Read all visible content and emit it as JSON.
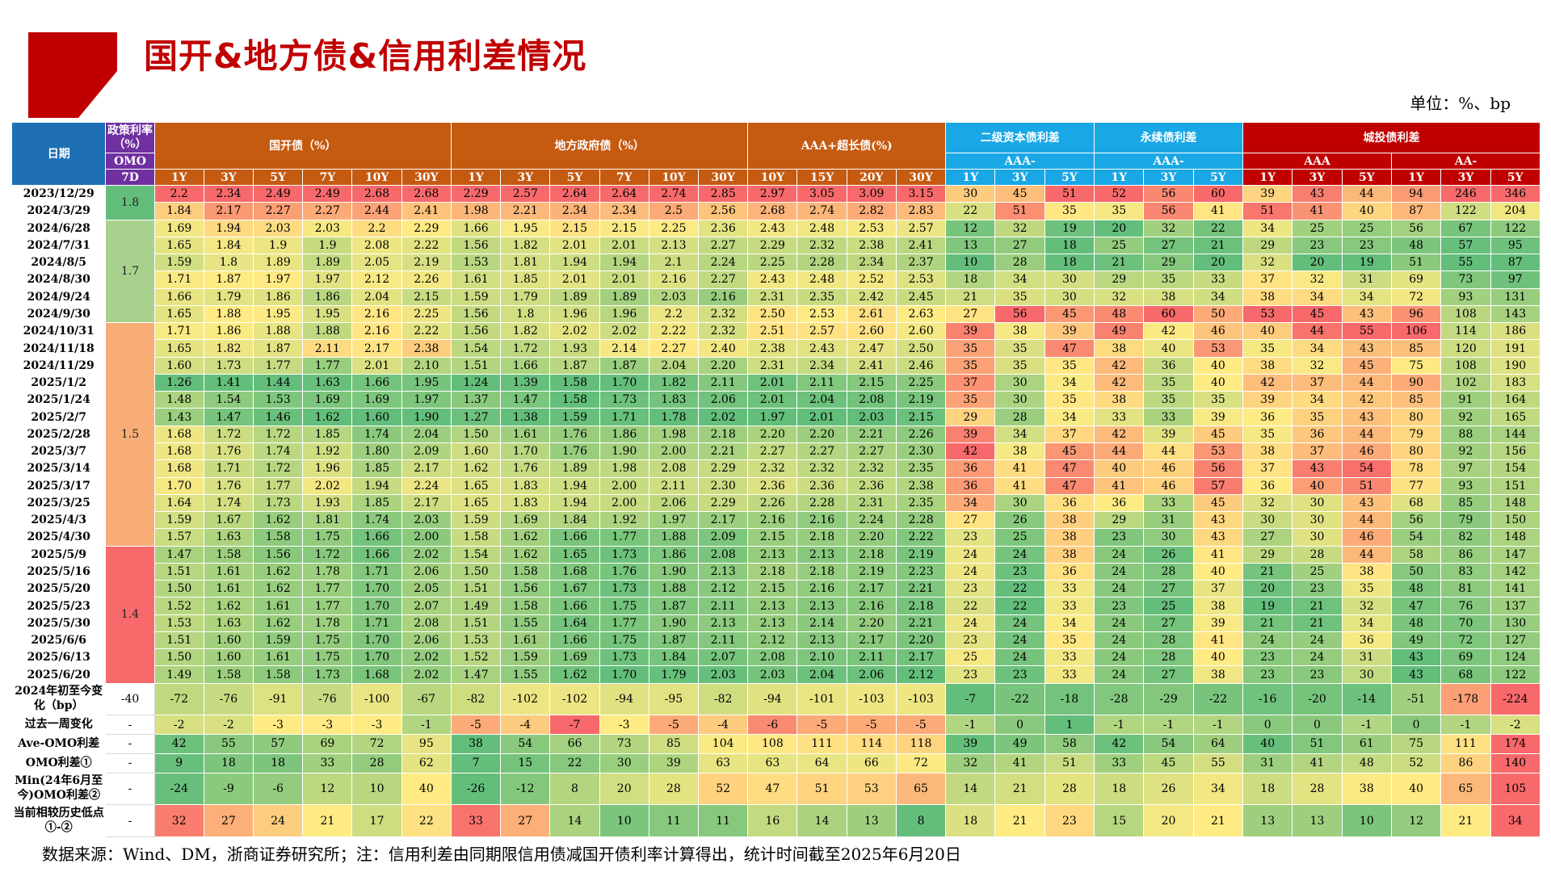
{
  "page": {
    "title": "国开&地方债&信用利差情况",
    "unit": "单位：%、bp",
    "source": "数据来源：Wind、DM，浙商证券研究所；注：信用利差由同期限信用债减国开债利率计算得出，统计时间截至2025年6月20日"
  },
  "header": {
    "date": "日期",
    "policy_title": "政策利率（%）",
    "policy_sub": "OMO",
    "policy_tenor": "7D",
    "groups": [
      "国开债（%）",
      "地方政府债（%）",
      "AAA+超长债(%)",
      "二级资本债利差",
      "永续债利差",
      "城投债利差"
    ],
    "ratings": [
      "AAA-",
      "AAA-",
      "AAA",
      "AA-"
    ],
    "tenors": [
      "1Y",
      "3Y",
      "5Y",
      "7Y",
      "10Y",
      "30Y",
      "1Y",
      "3Y",
      "5Y",
      "7Y",
      "10Y",
      "30Y",
      "10Y",
      "15Y",
      "20Y",
      "30Y",
      "1Y",
      "3Y",
      "5Y",
      "1Y",
      "3Y",
      "5Y",
      "1Y",
      "3Y",
      "5Y",
      "1Y",
      "3Y",
      "5Y"
    ]
  },
  "policy_rates": [
    {
      "value": "1.8",
      "rows": 2
    },
    {
      "value": "1.7",
      "rows": 6
    },
    {
      "value": "1.5",
      "rows": 13
    },
    {
      "value": "1.4",
      "rows": 8
    }
  ],
  "rows": [
    {
      "date": "2023/12/29",
      "v": [
        "2.2",
        "2.34",
        "2.49",
        "2.49",
        "2.68",
        "2.68",
        "2.29",
        "2.57",
        "2.64",
        "2.64",
        "2.74",
        "2.85",
        "2.97",
        "3.05",
        "3.09",
        "3.15",
        "30",
        "45",
        "51",
        "52",
        "56",
        "60",
        "39",
        "43",
        "44",
        "94",
        "246",
        "346"
      ]
    },
    {
      "date": "2024/3/29",
      "v": [
        "1.84",
        "2.17",
        "2.27",
        "2.27",
        "2.44",
        "2.41",
        "1.98",
        "2.21",
        "2.34",
        "2.34",
        "2.5",
        "2.56",
        "2.68",
        "2.74",
        "2.82",
        "2.83",
        "22",
        "51",
        "35",
        "35",
        "56",
        "41",
        "51",
        "41",
        "40",
        "87",
        "122",
        "204"
      ]
    },
    {
      "date": "2024/6/28",
      "v": [
        "1.69",
        "1.94",
        "2.03",
        "2.03",
        "2.2",
        "2.29",
        "1.66",
        "1.95",
        "2.15",
        "2.15",
        "2.25",
        "2.36",
        "2.43",
        "2.48",
        "2.53",
        "2.57",
        "12",
        "32",
        "19",
        "20",
        "32",
        "22",
        "34",
        "25",
        "25",
        "56",
        "67",
        "122"
      ]
    },
    {
      "date": "2024/7/31",
      "v": [
        "1.65",
        "1.84",
        "1.9",
        "1.9",
        "2.08",
        "2.22",
        "1.56",
        "1.82",
        "2.01",
        "2.01",
        "2.13",
        "2.27",
        "2.29",
        "2.32",
        "2.38",
        "2.41",
        "13",
        "27",
        "18",
        "25",
        "27",
        "21",
        "29",
        "23",
        "23",
        "48",
        "57",
        "95"
      ]
    },
    {
      "date": "2024/8/5",
      "v": [
        "1.59",
        "1.8",
        "1.89",
        "1.89",
        "2.05",
        "2.19",
        "1.53",
        "1.81",
        "1.94",
        "1.94",
        "2.1",
        "2.24",
        "2.25",
        "2.28",
        "2.34",
        "2.37",
        "10",
        "28",
        "18",
        "21",
        "29",
        "20",
        "32",
        "20",
        "19",
        "51",
        "55",
        "87"
      ]
    },
    {
      "date": "2024/8/30",
      "v": [
        "1.71",
        "1.87",
        "1.97",
        "1.97",
        "2.12",
        "2.26",
        "1.61",
        "1.85",
        "2.01",
        "2.01",
        "2.16",
        "2.27",
        "2.43",
        "2.48",
        "2.52",
        "2.53",
        "18",
        "34",
        "30",
        "29",
        "35",
        "33",
        "37",
        "32",
        "31",
        "69",
        "73",
        "97"
      ]
    },
    {
      "date": "2024/9/24",
      "v": [
        "1.66",
        "1.79",
        "1.86",
        "1.86",
        "2.04",
        "2.15",
        "1.59",
        "1.79",
        "1.89",
        "1.89",
        "2.03",
        "2.16",
        "2.31",
        "2.35",
        "2.42",
        "2.45",
        "21",
        "35",
        "30",
        "32",
        "38",
        "34",
        "38",
        "34",
        "34",
        "72",
        "93",
        "131"
      ]
    },
    {
      "date": "2024/9/30",
      "v": [
        "1.65",
        "1.88",
        "1.95",
        "1.95",
        "2.16",
        "2.25",
        "1.56",
        "1.8",
        "1.96",
        "1.96",
        "2.2",
        "2.32",
        "2.50",
        "2.53",
        "2.61",
        "2.63",
        "27",
        "56",
        "45",
        "48",
        "60",
        "50",
        "53",
        "45",
        "43",
        "96",
        "108",
        "143"
      ]
    },
    {
      "date": "2024/10/31",
      "v": [
        "1.71",
        "1.86",
        "1.88",
        "1.88",
        "2.16",
        "2.22",
        "1.56",
        "1.82",
        "2.02",
        "2.02",
        "2.22",
        "2.32",
        "2.51",
        "2.57",
        "2.60",
        "2.60",
        "39",
        "38",
        "39",
        "49",
        "42",
        "46",
        "40",
        "44",
        "55",
        "106",
        "114",
        "186"
      ]
    },
    {
      "date": "2024/11/18",
      "v": [
        "1.65",
        "1.82",
        "1.87",
        "2.11",
        "2.17",
        "2.38",
        "1.54",
        "1.72",
        "1.93",
        "2.14",
        "2.27",
        "2.40",
        "2.38",
        "2.43",
        "2.47",
        "2.50",
        "35",
        "35",
        "47",
        "38",
        "40",
        "53",
        "35",
        "34",
        "43",
        "85",
        "120",
        "191"
      ]
    },
    {
      "date": "2024/11/29",
      "v": [
        "1.60",
        "1.73",
        "1.77",
        "1.77",
        "2.01",
        "2.10",
        "1.51",
        "1.66",
        "1.87",
        "1.87",
        "2.04",
        "2.20",
        "2.31",
        "2.34",
        "2.41",
        "2.46",
        "35",
        "35",
        "35",
        "42",
        "36",
        "40",
        "38",
        "32",
        "45",
        "75",
        "108",
        "190"
      ]
    },
    {
      "date": "2025/1/2",
      "v": [
        "1.26",
        "1.41",
        "1.44",
        "1.63",
        "1.66",
        "1.95",
        "1.24",
        "1.39",
        "1.58",
        "1.70",
        "1.82",
        "2.11",
        "2.01",
        "2.11",
        "2.15",
        "2.25",
        "37",
        "30",
        "34",
        "42",
        "35",
        "40",
        "42",
        "37",
        "44",
        "90",
        "102",
        "183"
      ]
    },
    {
      "date": "2025/1/24",
      "v": [
        "1.48",
        "1.54",
        "1.53",
        "1.69",
        "1.69",
        "1.97",
        "1.37",
        "1.47",
        "1.58",
        "1.73",
        "1.83",
        "2.06",
        "2.01",
        "2.04",
        "2.08",
        "2.19",
        "35",
        "30",
        "35",
        "38",
        "35",
        "35",
        "39",
        "34",
        "42",
        "85",
        "91",
        "164"
      ]
    },
    {
      "date": "2025/2/7",
      "v": [
        "1.43",
        "1.47",
        "1.46",
        "1.62",
        "1.60",
        "1.90",
        "1.27",
        "1.38",
        "1.59",
        "1.71",
        "1.78",
        "2.02",
        "1.97",
        "2.01",
        "2.03",
        "2.15",
        "29",
        "28",
        "34",
        "33",
        "33",
        "39",
        "36",
        "35",
        "43",
        "80",
        "92",
        "165"
      ]
    },
    {
      "date": "2025/2/28",
      "v": [
        "1.68",
        "1.72",
        "1.72",
        "1.85",
        "1.74",
        "2.04",
        "1.50",
        "1.61",
        "1.76",
        "1.86",
        "1.98",
        "2.18",
        "2.20",
        "2.20",
        "2.21",
        "2.26",
        "39",
        "34",
        "37",
        "42",
        "39",
        "45",
        "35",
        "36",
        "44",
        "79",
        "88",
        "144"
      ]
    },
    {
      "date": "2025/3/7",
      "v": [
        "1.68",
        "1.76",
        "1.74",
        "1.92",
        "1.80",
        "2.09",
        "1.60",
        "1.70",
        "1.76",
        "1.90",
        "2.00",
        "2.21",
        "2.27",
        "2.27",
        "2.27",
        "2.30",
        "42",
        "38",
        "45",
        "44",
        "44",
        "53",
        "38",
        "37",
        "46",
        "80",
        "92",
        "156"
      ]
    },
    {
      "date": "2025/3/14",
      "v": [
        "1.68",
        "1.71",
        "1.72",
        "1.96",
        "1.85",
        "2.17",
        "1.62",
        "1.76",
        "1.89",
        "1.98",
        "2.08",
        "2.29",
        "2.32",
        "2.32",
        "2.32",
        "2.35",
        "36",
        "41",
        "47",
        "40",
        "46",
        "56",
        "37",
        "43",
        "54",
        "78",
        "97",
        "154"
      ]
    },
    {
      "date": "2025/3/17",
      "v": [
        "1.70",
        "1.76",
        "1.77",
        "2.02",
        "1.94",
        "2.24",
        "1.65",
        "1.83",
        "1.94",
        "2.00",
        "2.11",
        "2.30",
        "2.36",
        "2.36",
        "2.36",
        "2.38",
        "36",
        "41",
        "47",
        "41",
        "46",
        "57",
        "36",
        "40",
        "51",
        "77",
        "93",
        "151"
      ]
    },
    {
      "date": "2025/3/25",
      "v": [
        "1.64",
        "1.74",
        "1.73",
        "1.93",
        "1.85",
        "2.17",
        "1.65",
        "1.83",
        "1.94",
        "2.00",
        "2.06",
        "2.29",
        "2.26",
        "2.28",
        "2.31",
        "2.35",
        "34",
        "30",
        "36",
        "36",
        "33",
        "45",
        "32",
        "30",
        "43",
        "68",
        "85",
        "148"
      ]
    },
    {
      "date": "2025/4/3",
      "v": [
        "1.59",
        "1.67",
        "1.62",
        "1.81",
        "1.74",
        "2.03",
        "1.59",
        "1.69",
        "1.84",
        "1.92",
        "1.97",
        "2.17",
        "2.16",
        "2.16",
        "2.24",
        "2.28",
        "27",
        "26",
        "38",
        "29",
        "31",
        "43",
        "30",
        "30",
        "44",
        "56",
        "79",
        "150"
      ]
    },
    {
      "date": "2025/4/30",
      "v": [
        "1.57",
        "1.63",
        "1.58",
        "1.75",
        "1.66",
        "2.00",
        "1.58",
        "1.62",
        "1.66",
        "1.77",
        "1.88",
        "2.09",
        "2.15",
        "2.18",
        "2.20",
        "2.22",
        "23",
        "25",
        "38",
        "23",
        "30",
        "43",
        "27",
        "30",
        "46",
        "54",
        "82",
        "148"
      ]
    },
    {
      "date": "2025/5/9",
      "v": [
        "1.47",
        "1.58",
        "1.56",
        "1.72",
        "1.66",
        "2.02",
        "1.54",
        "1.62",
        "1.65",
        "1.73",
        "1.86",
        "2.08",
        "2.13",
        "2.13",
        "2.18",
        "2.19",
        "24",
        "24",
        "38",
        "24",
        "26",
        "41",
        "29",
        "28",
        "44",
        "58",
        "86",
        "147"
      ]
    },
    {
      "date": "2025/5/16",
      "v": [
        "1.51",
        "1.61",
        "1.62",
        "1.78",
        "1.71",
        "2.06",
        "1.50",
        "1.58",
        "1.68",
        "1.76",
        "1.90",
        "2.13",
        "2.18",
        "2.18",
        "2.19",
        "2.23",
        "24",
        "23",
        "36",
        "24",
        "28",
        "40",
        "21",
        "25",
        "38",
        "50",
        "83",
        "142"
      ]
    },
    {
      "date": "2025/5/20",
      "v": [
        "1.50",
        "1.61",
        "1.62",
        "1.77",
        "1.70",
        "2.05",
        "1.51",
        "1.56",
        "1.67",
        "1.73",
        "1.88",
        "2.12",
        "2.15",
        "2.16",
        "2.17",
        "2.21",
        "23",
        "22",
        "33",
        "24",
        "27",
        "37",
        "20",
        "23",
        "35",
        "48",
        "81",
        "141"
      ]
    },
    {
      "date": "2025/5/23",
      "v": [
        "1.52",
        "1.62",
        "1.61",
        "1.77",
        "1.70",
        "2.07",
        "1.49",
        "1.58",
        "1.66",
        "1.75",
        "1.87",
        "2.11",
        "2.13",
        "2.13",
        "2.16",
        "2.18",
        "22",
        "22",
        "33",
        "23",
        "25",
        "38",
        "19",
        "21",
        "32",
        "47",
        "76",
        "137"
      ]
    },
    {
      "date": "2025/5/30",
      "v": [
        "1.53",
        "1.63",
        "1.62",
        "1.78",
        "1.71",
        "2.08",
        "1.51",
        "1.55",
        "1.64",
        "1.77",
        "1.90",
        "2.13",
        "2.13",
        "2.14",
        "2.20",
        "2.21",
        "24",
        "24",
        "34",
        "24",
        "27",
        "39",
        "21",
        "21",
        "34",
        "48",
        "70",
        "130"
      ]
    },
    {
      "date": "2025/6/6",
      "v": [
        "1.51",
        "1.60",
        "1.59",
        "1.75",
        "1.70",
        "2.06",
        "1.53",
        "1.61",
        "1.66",
        "1.75",
        "1.87",
        "2.11",
        "2.12",
        "2.13",
        "2.17",
        "2.20",
        "23",
        "24",
        "35",
        "24",
        "28",
        "41",
        "24",
        "24",
        "36",
        "49",
        "72",
        "127"
      ]
    },
    {
      "date": "2025/6/13",
      "v": [
        "1.50",
        "1.60",
        "1.61",
        "1.75",
        "1.70",
        "2.02",
        "1.52",
        "1.59",
        "1.69",
        "1.73",
        "1.84",
        "2.07",
        "2.08",
        "2.10",
        "2.11",
        "2.17",
        "25",
        "24",
        "33",
        "24",
        "28",
        "40",
        "23",
        "24",
        "31",
        "43",
        "69",
        "124"
      ]
    },
    {
      "date": "2025/6/20",
      "v": [
        "1.49",
        "1.58",
        "1.58",
        "1.73",
        "1.68",
        "2.02",
        "1.47",
        "1.55",
        "1.62",
        "1.70",
        "1.79",
        "2.03",
        "2.03",
        "2.04",
        "2.06",
        "2.12",
        "23",
        "23",
        "33",
        "24",
        "27",
        "38",
        "23",
        "23",
        "30",
        "43",
        "68",
        "122"
      ]
    }
  ],
  "summary": [
    {
      "label": "2024年初至今变化（bp）",
      "omo": "-40",
      "v": [
        "-72",
        "-76",
        "-91",
        "-76",
        "-100",
        "-67",
        "-82",
        "-102",
        "-102",
        "-94",
        "-95",
        "-82",
        "-94",
        "-101",
        "-103",
        "-103",
        "-7",
        "-22",
        "-18",
        "-28",
        "-29",
        "-22",
        "-16",
        "-20",
        "-14",
        "-51",
        "-178",
        "-224"
      ]
    },
    {
      "label": "过去一周变化",
      "omo": "-",
      "v": [
        "-2",
        "-2",
        "-3",
        "-3",
        "-3",
        "-1",
        "-5",
        "-4",
        "-7",
        "-3",
        "-5",
        "-4",
        "-6",
        "-5",
        "-5",
        "-5",
        "-1",
        "0",
        "1",
        "-1",
        "-1",
        "-1",
        "0",
        "0",
        "-1",
        "0",
        "-1",
        "-2"
      ]
    },
    {
      "label": "Ave-OMO利差",
      "omo": "-",
      "v": [
        "42",
        "55",
        "57",
        "69",
        "72",
        "95",
        "38",
        "54",
        "66",
        "73",
        "85",
        "104",
        "108",
        "111",
        "114",
        "118",
        "39",
        "49",
        "58",
        "42",
        "54",
        "64",
        "40",
        "51",
        "61",
        "75",
        "111",
        "174"
      ]
    },
    {
      "label": "OMO利差①",
      "omo": "-",
      "v": [
        "9",
        "18",
        "18",
        "33",
        "28",
        "62",
        "7",
        "15",
        "22",
        "30",
        "39",
        "63",
        "63",
        "64",
        "66",
        "72",
        "32",
        "41",
        "51",
        "33",
        "45",
        "55",
        "31",
        "41",
        "48",
        "52",
        "86",
        "140"
      ]
    },
    {
      "label": "Min(24年6月至今)OMO利差②",
      "omo": "-",
      "v": [
        "-24",
        "-9",
        "-6",
        "12",
        "10",
        "40",
        "-26",
        "-12",
        "8",
        "20",
        "28",
        "52",
        "47",
        "51",
        "53",
        "65",
        "14",
        "21",
        "28",
        "18",
        "26",
        "34",
        "18",
        "28",
        "38",
        "40",
        "65",
        "105"
      ]
    },
    {
      "label": "当前相较历史低点①-②",
      "omo": "-",
      "v": [
        "32",
        "27",
        "24",
        "21",
        "17",
        "22",
        "33",
        "27",
        "14",
        "10",
        "11",
        "11",
        "16",
        "14",
        "13",
        "8",
        "18",
        "21",
        "23",
        "15",
        "20",
        "21",
        "13",
        "13",
        "10",
        "12",
        "21",
        "34"
      ]
    }
  ],
  "colors": {
    "title_red": "#c00000",
    "header_blue": "#1f6fb5",
    "header_purple": "#7030a0",
    "header_orange": "#c55a11",
    "header_cyan": "#19a7e6",
    "header_red": "#c00000",
    "policy_rate_colors": [
      "#63be7b",
      "#a9d18e",
      "#f8ad76",
      "#f8696b"
    ],
    "scale_low": "#63be7b",
    "scale_mid": "#ffeb84",
    "scale_high": "#f8696b"
  }
}
